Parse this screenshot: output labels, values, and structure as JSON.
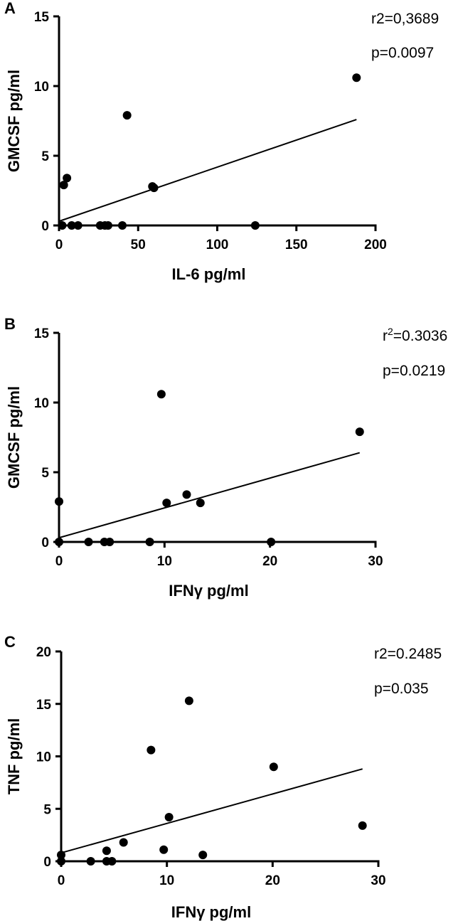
{
  "chart_data": [
    {
      "type": "scatter",
      "panel": "A",
      "xlabel": "IL-6 pg/ml",
      "ylabel": "GMCSF pg/ml",
      "xlim": [
        0,
        200
      ],
      "ylim": [
        0,
        15
      ],
      "xticks": [
        "0",
        "50",
        "100",
        "150",
        "200"
      ],
      "yticks": [
        "0",
        "5",
        "10",
        "15"
      ],
      "stats": [
        {
          "text": "r2=0,3689"
        },
        {
          "text": "p=0.0097"
        }
      ],
      "points": [
        {
          "x": 2,
          "y": 0
        },
        {
          "x": 3,
          "y": 2.9
        },
        {
          "x": 5,
          "y": 3.4
        },
        {
          "x": 8,
          "y": 0
        },
        {
          "x": 12,
          "y": 0
        },
        {
          "x": 26,
          "y": 0
        },
        {
          "x": 29,
          "y": 0
        },
        {
          "x": 31,
          "y": 0
        },
        {
          "x": 40,
          "y": 0
        },
        {
          "x": 43,
          "y": 7.9
        },
        {
          "x": 59,
          "y": 2.8
        },
        {
          "x": 60,
          "y": 2.7
        },
        {
          "x": 124,
          "y": 0
        },
        {
          "x": 188,
          "y": 10.6
        }
      ],
      "fit": {
        "x": [
          0,
          188
        ],
        "y": [
          0.3,
          7.6
        ]
      }
    },
    {
      "type": "scatter",
      "panel": "B",
      "xlabel": "IFNγ pg/ml",
      "ylabel": "GMCSF pg/ml",
      "xlim": [
        0,
        30
      ],
      "ylim": [
        0,
        15
      ],
      "xticks": [
        "0",
        "10",
        "20",
        "30"
      ],
      "yticks": [
        "0",
        "5",
        "10",
        "15"
      ],
      "stats": [
        {
          "text": "r",
          "sup": "2",
          "rest": "=0.3036"
        },
        {
          "text": "p=0.0219"
        }
      ],
      "points": [
        {
          "x": 0,
          "y": 2.9
        },
        {
          "x": 0,
          "y": 0
        },
        {
          "x": 2.8,
          "y": 0
        },
        {
          "x": 4.3,
          "y": 0
        },
        {
          "x": 4.8,
          "y": 0
        },
        {
          "x": 8.6,
          "y": 0
        },
        {
          "x": 9.7,
          "y": 10.6
        },
        {
          "x": 10.2,
          "y": 2.8
        },
        {
          "x": 12.1,
          "y": 3.4
        },
        {
          "x": 13.4,
          "y": 2.8
        },
        {
          "x": 20.1,
          "y": 0
        },
        {
          "x": 28.5,
          "y": 7.9
        }
      ],
      "fit": {
        "x": [
          0,
          28.5
        ],
        "y": [
          0.3,
          6.4
        ]
      }
    },
    {
      "type": "scatter",
      "panel": "C",
      "xlabel": "IFNγ pg/ml",
      "ylabel": "TNF pg/ml",
      "xlim": [
        0,
        30
      ],
      "ylim": [
        0,
        20
      ],
      "xticks": [
        "0",
        "10",
        "20",
        "30"
      ],
      "yticks": [
        "0",
        "5",
        "10",
        "15",
        "20"
      ],
      "stats": [
        {
          "text": "r2=0.2485"
        },
        {
          "text": "p=0.035"
        }
      ],
      "points": [
        {
          "x": 0,
          "y": 0.6
        },
        {
          "x": 0,
          "y": 0
        },
        {
          "x": 2.8,
          "y": 0
        },
        {
          "x": 4.3,
          "y": 1.0
        },
        {
          "x": 4.3,
          "y": 0
        },
        {
          "x": 4.8,
          "y": 0
        },
        {
          "x": 5.9,
          "y": 1.8
        },
        {
          "x": 8.5,
          "y": 10.6
        },
        {
          "x": 9.7,
          "y": 1.1
        },
        {
          "x": 10.2,
          "y": 4.2
        },
        {
          "x": 12.1,
          "y": 15.3
        },
        {
          "x": 13.4,
          "y": 0.6
        },
        {
          "x": 20.1,
          "y": 9.0
        },
        {
          "x": 28.5,
          "y": 3.4
        }
      ],
      "fit": {
        "x": [
          0,
          28.5
        ],
        "y": [
          0.8,
          8.8
        ]
      }
    }
  ]
}
